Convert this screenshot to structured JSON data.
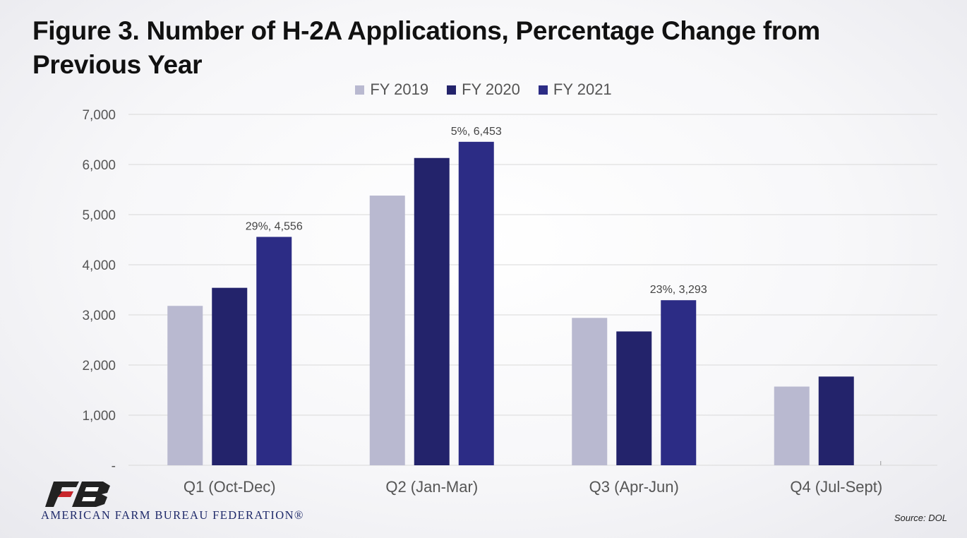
{
  "title": "Figure 3. Number of H-2A Applications, Percentage Change from Previous Year",
  "source": "Source: DOL",
  "logo": {
    "text": "AMERICAN FARM BUREAU FEDERATION®"
  },
  "colors": {
    "fy2019": "#b9b9d0",
    "fy2020": "#23236b",
    "fy2021": "#2c2c85",
    "grid": "#d9d9d9",
    "axis_text": "#555555"
  },
  "chart_data": {
    "type": "bar",
    "categories": [
      "Q1 (Oct-Dec)",
      "Q2 (Jan-Mar)",
      "Q3 (Apr-Jun)",
      "Q4 (Jul-Sept)"
    ],
    "series": [
      {
        "name": "FY 2019",
        "values": [
          3180,
          5380,
          2940,
          1570
        ]
      },
      {
        "name": "FY 2020",
        "values": [
          3540,
          6130,
          2670,
          1770
        ]
      },
      {
        "name": "FY 2021",
        "values": [
          4556,
          6453,
          3293,
          0
        ]
      }
    ],
    "data_labels": [
      {
        "category": "Q1 (Oct-Dec)",
        "series": "FY 2021",
        "text": "29%,  4,556"
      },
      {
        "category": "Q2 (Jan-Mar)",
        "series": "FY 2021",
        "text": "5%,  6,453"
      },
      {
        "category": "Q3 (Apr-Jun)",
        "series": "FY 2021",
        "text": "23%,  3,293"
      }
    ],
    "yticks": [
      0,
      1000,
      2000,
      3000,
      4000,
      5000,
      6000,
      7000
    ],
    "ytick_labels": [
      "-",
      "1,000",
      "2,000",
      "3,000",
      "4,000",
      "5,000",
      "6,000",
      "7,000"
    ],
    "ylim": [
      0,
      7000
    ],
    "grid": true,
    "legend": "top-center"
  }
}
